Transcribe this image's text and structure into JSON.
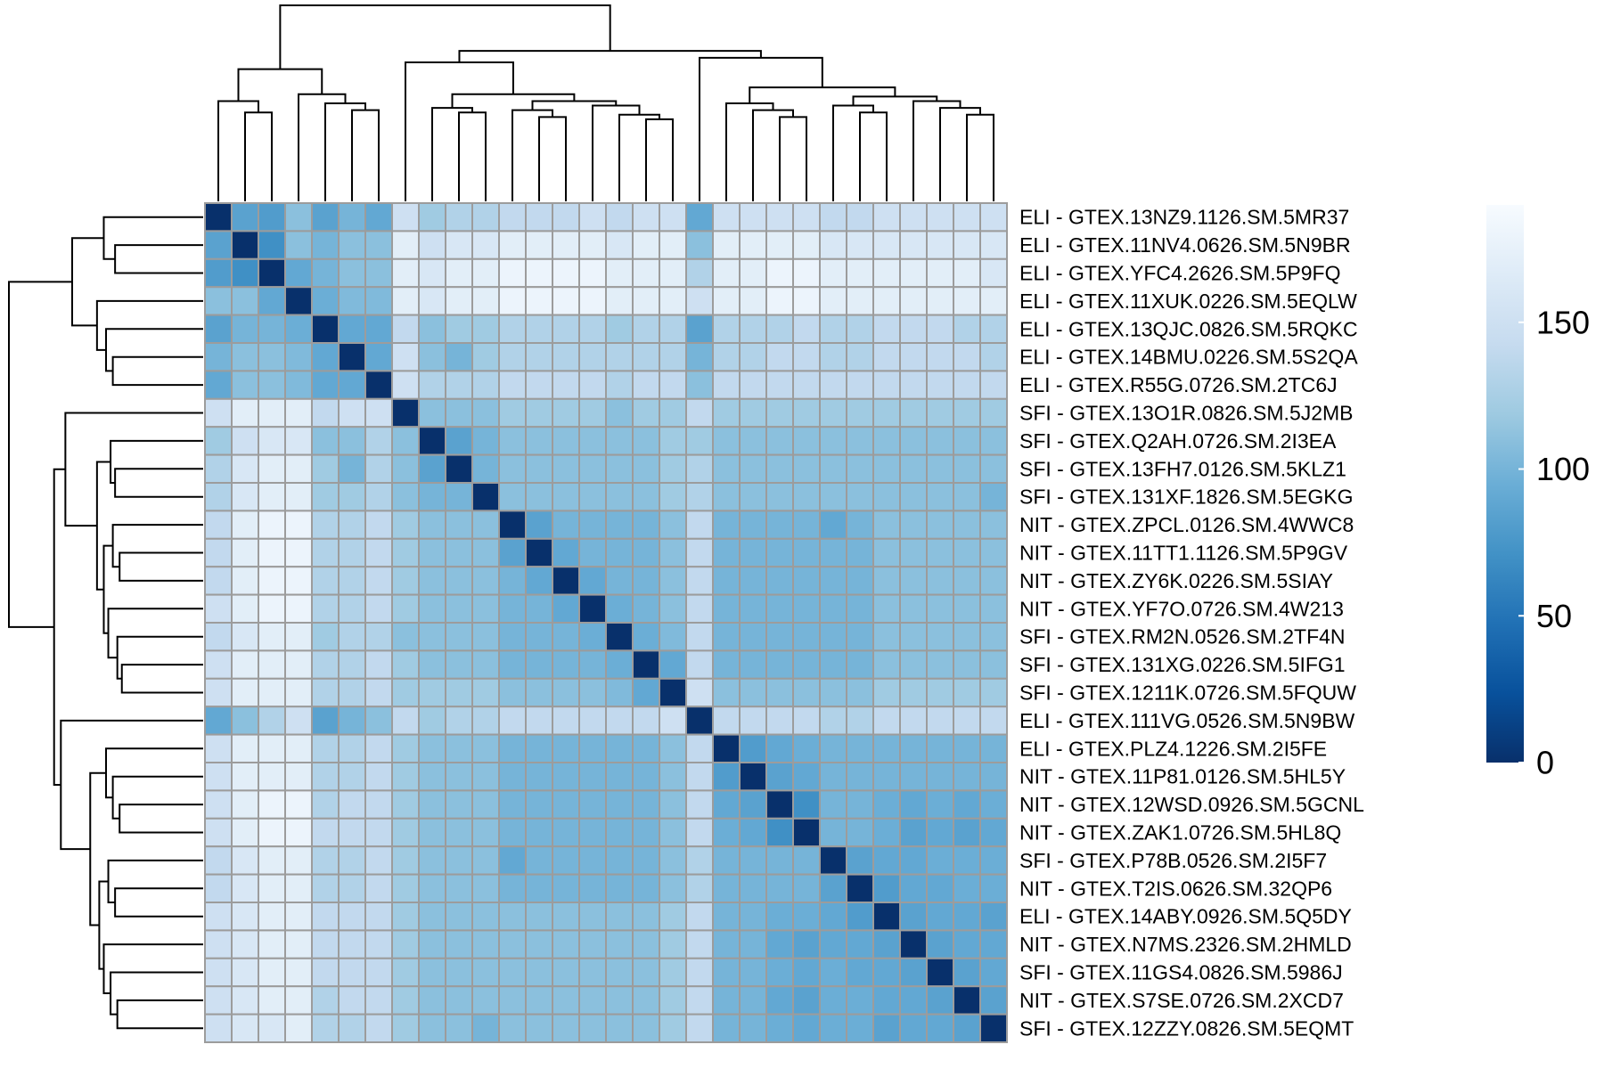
{
  "chart_data": {
    "type": "heatmap",
    "title": "",
    "row_labels": [
      "ELI - GTEX.13NZ9.1126.SM.5MR37",
      "ELI - GTEX.11NV4.0626.SM.5N9BR",
      "ELI - GTEX.YFC4.2626.SM.5P9FQ",
      "ELI - GTEX.11XUK.0226.SM.5EQLW",
      "ELI - GTEX.13QJC.0826.SM.5RQKC",
      "ELI - GTEX.14BMU.0226.SM.5S2QA",
      "ELI - GTEX.R55G.0726.SM.2TC6J",
      "SFI - GTEX.13O1R.0826.SM.5J2MB",
      "SFI - GTEX.Q2AH.0726.SM.2I3EA",
      "SFI - GTEX.13FH7.0126.SM.5KLZ1",
      "SFI - GTEX.131XF.1826.SM.5EGKG",
      "NIT - GTEX.ZPCL.0126.SM.4WWC8",
      "NIT - GTEX.11TT1.1126.SM.5P9GV",
      "NIT - GTEX.ZY6K.0226.SM.5SIAY",
      "NIT - GTEX.YF7O.0726.SM.4W213",
      "SFI - GTEX.RM2N.0526.SM.2TF4N",
      "SFI - GTEX.131XG.0226.SM.5IFG1",
      "SFI - GTEX.1211K.0726.SM.5FQUW",
      "ELI - GTEX.111VG.0526.SM.5N9BW",
      "ELI - GTEX.PLZ4.1226.SM.2I5FE",
      "NIT - GTEX.11P81.0126.SM.5HL5Y",
      "NIT - GTEX.12WSD.0926.SM.5GCNL",
      "NIT - GTEX.ZAK1.0726.SM.5HL8Q",
      "SFI - GTEX.P78B.0526.SM.2I5F7",
      "NIT - GTEX.T2IS.0626.SM.32QP6",
      "ELI - GTEX.14ABY.0926.SM.5Q5DY",
      "NIT - GTEX.N7MS.2326.SM.2HMLD",
      "SFI - GTEX.11GS4.0826.SM.5986J",
      "NIT - GTEX.S7SE.0726.SM.2XCD7",
      "SFI - GTEX.12ZZY.0826.SM.5EQMT"
    ],
    "column_labels": [],
    "values": [
      [
        0,
        85,
        80,
        110,
        85,
        100,
        90,
        150,
        120,
        130,
        130,
        140,
        140,
        140,
        150,
        140,
        150,
        150,
        90,
        150,
        150,
        150,
        150,
        140,
        140,
        150,
        150,
        150,
        150,
        150
      ],
      [
        85,
        0,
        70,
        110,
        100,
        110,
        110,
        170,
        150,
        160,
        160,
        170,
        170,
        170,
        170,
        160,
        170,
        170,
        110,
        170,
        170,
        170,
        170,
        160,
        160,
        160,
        160,
        160,
        160,
        160
      ],
      [
        80,
        70,
        0,
        90,
        100,
        110,
        110,
        170,
        160,
        170,
        170,
        180,
        180,
        180,
        180,
        170,
        170,
        170,
        130,
        170,
        170,
        180,
        180,
        170,
        170,
        170,
        170,
        170,
        170,
        160
      ],
      [
        110,
        110,
        90,
        0,
        95,
        105,
        105,
        170,
        160,
        170,
        170,
        180,
        180,
        180,
        180,
        170,
        170,
        170,
        150,
        170,
        170,
        180,
        180,
        170,
        170,
        170,
        170,
        170,
        170,
        170
      ],
      [
        85,
        100,
        100,
        95,
        0,
        90,
        90,
        140,
        110,
        120,
        120,
        130,
        130,
        130,
        130,
        120,
        130,
        130,
        85,
        130,
        130,
        130,
        140,
        130,
        130,
        140,
        140,
        140,
        130,
        130
      ],
      [
        100,
        110,
        110,
        105,
        90,
        0,
        90,
        150,
        110,
        100,
        120,
        130,
        130,
        130,
        130,
        130,
        130,
        130,
        100,
        130,
        130,
        140,
        140,
        130,
        130,
        140,
        140,
        140,
        140,
        130
      ],
      [
        90,
        110,
        110,
        105,
        90,
        90,
        0,
        150,
        130,
        130,
        130,
        140,
        140,
        140,
        140,
        130,
        140,
        140,
        110,
        140,
        140,
        140,
        140,
        140,
        140,
        140,
        140,
        140,
        140,
        140
      ],
      [
        150,
        170,
        170,
        170,
        140,
        150,
        150,
        0,
        110,
        110,
        110,
        120,
        120,
        120,
        120,
        110,
        120,
        120,
        140,
        120,
        120,
        120,
        120,
        120,
        120,
        120,
        120,
        120,
        120,
        120
      ],
      [
        120,
        150,
        160,
        160,
        110,
        110,
        130,
        110,
        0,
        85,
        100,
        110,
        110,
        110,
        110,
        110,
        110,
        120,
        120,
        110,
        110,
        110,
        110,
        110,
        110,
        110,
        110,
        110,
        110,
        110
      ],
      [
        130,
        160,
        170,
        170,
        120,
        100,
        130,
        110,
        85,
        0,
        100,
        110,
        110,
        110,
        110,
        110,
        110,
        120,
        130,
        110,
        110,
        110,
        110,
        110,
        110,
        110,
        110,
        110,
        110,
        110
      ],
      [
        130,
        160,
        170,
        170,
        120,
        120,
        130,
        110,
        100,
        100,
        0,
        110,
        110,
        110,
        110,
        110,
        110,
        120,
        130,
        110,
        110,
        110,
        110,
        110,
        110,
        110,
        110,
        110,
        110,
        100
      ],
      [
        140,
        170,
        180,
        180,
        130,
        130,
        140,
        120,
        110,
        110,
        110,
        0,
        85,
        100,
        100,
        100,
        100,
        110,
        140,
        100,
        100,
        100,
        100,
        90,
        100,
        110,
        110,
        110,
        110,
        110
      ],
      [
        140,
        170,
        180,
        180,
        130,
        130,
        140,
        120,
        110,
        110,
        110,
        85,
        0,
        90,
        100,
        100,
        100,
        110,
        140,
        100,
        100,
        100,
        100,
        100,
        100,
        110,
        110,
        110,
        110,
        110
      ],
      [
        140,
        170,
        180,
        180,
        130,
        130,
        140,
        120,
        110,
        110,
        110,
        100,
        90,
        0,
        90,
        100,
        100,
        110,
        140,
        100,
        100,
        100,
        100,
        100,
        100,
        110,
        110,
        110,
        110,
        110
      ],
      [
        150,
        170,
        180,
        180,
        130,
        130,
        140,
        120,
        110,
        110,
        110,
        100,
        100,
        90,
        0,
        95,
        100,
        110,
        140,
        100,
        100,
        100,
        100,
        100,
        100,
        110,
        110,
        110,
        110,
        110
      ],
      [
        140,
        160,
        170,
        170,
        120,
        130,
        130,
        110,
        110,
        110,
        110,
        100,
        100,
        100,
        95,
        0,
        95,
        105,
        140,
        100,
        100,
        100,
        100,
        100,
        100,
        110,
        110,
        110,
        110,
        110
      ],
      [
        150,
        170,
        170,
        170,
        130,
        130,
        140,
        120,
        110,
        110,
        110,
        100,
        100,
        100,
        100,
        95,
        0,
        90,
        140,
        100,
        100,
        100,
        100,
        100,
        100,
        110,
        110,
        110,
        110,
        110
      ],
      [
        150,
        170,
        170,
        170,
        130,
        130,
        140,
        120,
        120,
        120,
        120,
        110,
        110,
        110,
        110,
        105,
        90,
        0,
        150,
        110,
        110,
        110,
        110,
        110,
        110,
        120,
        120,
        120,
        120,
        120
      ],
      [
        90,
        110,
        130,
        150,
        85,
        100,
        110,
        140,
        120,
        130,
        130,
        140,
        140,
        140,
        140,
        140,
        140,
        150,
        0,
        140,
        140,
        140,
        140,
        130,
        130,
        140,
        140,
        140,
        140,
        140
      ],
      [
        150,
        170,
        170,
        170,
        130,
        130,
        140,
        120,
        110,
        110,
        110,
        100,
        100,
        100,
        100,
        100,
        100,
        110,
        140,
        0,
        80,
        90,
        95,
        100,
        100,
        100,
        100,
        100,
        100,
        100
      ],
      [
        150,
        170,
        170,
        170,
        130,
        130,
        140,
        120,
        110,
        110,
        110,
        100,
        100,
        100,
        100,
        100,
        100,
        110,
        140,
        80,
        0,
        85,
        90,
        100,
        100,
        100,
        100,
        100,
        100,
        100
      ],
      [
        150,
        170,
        180,
        180,
        130,
        140,
        140,
        120,
        110,
        110,
        110,
        100,
        100,
        100,
        100,
        100,
        100,
        110,
        140,
        90,
        85,
        0,
        70,
        100,
        100,
        95,
        90,
        95,
        90,
        95
      ],
      [
        150,
        170,
        180,
        180,
        140,
        140,
        140,
        120,
        110,
        110,
        110,
        100,
        100,
        100,
        100,
        100,
        100,
        110,
        140,
        95,
        90,
        70,
        0,
        100,
        100,
        95,
        85,
        90,
        85,
        90
      ],
      [
        140,
        160,
        170,
        170,
        130,
        130,
        140,
        120,
        110,
        110,
        110,
        90,
        100,
        100,
        100,
        100,
        100,
        110,
        130,
        100,
        100,
        100,
        100,
        0,
        85,
        90,
        90,
        95,
        95,
        95
      ],
      [
        140,
        160,
        170,
        170,
        130,
        130,
        140,
        120,
        110,
        110,
        110,
        100,
        100,
        100,
        100,
        100,
        100,
        110,
        130,
        100,
        100,
        100,
        100,
        85,
        0,
        80,
        90,
        90,
        95,
        95
      ],
      [
        150,
        160,
        170,
        170,
        140,
        140,
        140,
        120,
        110,
        110,
        110,
        110,
        110,
        110,
        110,
        110,
        110,
        120,
        140,
        100,
        100,
        95,
        95,
        90,
        80,
        0,
        85,
        90,
        90,
        85
      ],
      [
        150,
        160,
        170,
        170,
        140,
        140,
        140,
        120,
        110,
        110,
        110,
        110,
        110,
        110,
        110,
        110,
        110,
        120,
        140,
        100,
        100,
        90,
        85,
        90,
        90,
        85,
        0,
        85,
        90,
        90
      ],
      [
        150,
        160,
        170,
        170,
        140,
        140,
        140,
        120,
        110,
        110,
        110,
        110,
        110,
        110,
        110,
        110,
        110,
        120,
        140,
        100,
        100,
        95,
        90,
        95,
        90,
        90,
        85,
        0,
        85,
        90
      ],
      [
        150,
        160,
        170,
        170,
        130,
        140,
        140,
        120,
        110,
        110,
        110,
        110,
        110,
        110,
        110,
        110,
        110,
        120,
        140,
        100,
        100,
        90,
        85,
        95,
        95,
        90,
        90,
        85,
        0,
        85
      ],
      [
        150,
        160,
        160,
        170,
        130,
        130,
        140,
        120,
        110,
        110,
        100,
        110,
        110,
        110,
        110,
        110,
        110,
        120,
        140,
        100,
        100,
        95,
        90,
        95,
        95,
        85,
        90,
        90,
        85,
        0
      ]
    ],
    "colorbar": {
      "min": 0,
      "max": 190,
      "ticks": [
        0,
        50,
        100,
        150
      ],
      "tick_labels": [
        "0",
        "50",
        "100",
        "150"
      ]
    },
    "colorscale": [
      "#08306b",
      "#08519c",
      "#2171b5",
      "#4292c6",
      "#6baed6",
      "#9ecae1",
      "#c6dbef",
      "#deebf7",
      "#f7fbff"
    ],
    "grid_color": "#9c9c9c",
    "dendrogram_color": "#000000",
    "dendrograms": [
      "row",
      "column"
    ]
  }
}
